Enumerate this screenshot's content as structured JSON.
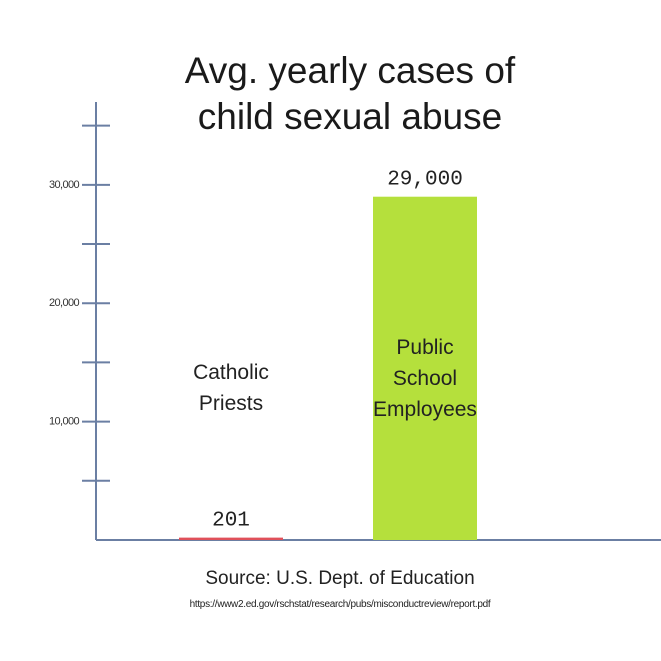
{
  "chart_data": {
    "type": "bar",
    "title": "Avg. yearly cases of child sexual abuse",
    "categories": [
      "Catholic\nPriests",
      "Public\nSchool\nEmployees"
    ],
    "values": [
      201,
      29000
    ],
    "value_labels": [
      "201",
      "29,000"
    ],
    "colors": [
      "#e0505a",
      "#b5e03c"
    ],
    "ylim": [
      0,
      37000
    ],
    "yticks": [
      {
        "value": 10000,
        "label": "10,000"
      },
      {
        "value": 20000,
        "label": "20,000"
      },
      {
        "value": 30000,
        "label": "30,000"
      }
    ],
    "minor_yticks": [
      5000,
      15000,
      25000,
      35000
    ],
    "source": "Source: U.S. Dept. of Education",
    "url": "https://www2.ed.gov/rschstat/research/pubs/misconductreview/report.pdf"
  }
}
